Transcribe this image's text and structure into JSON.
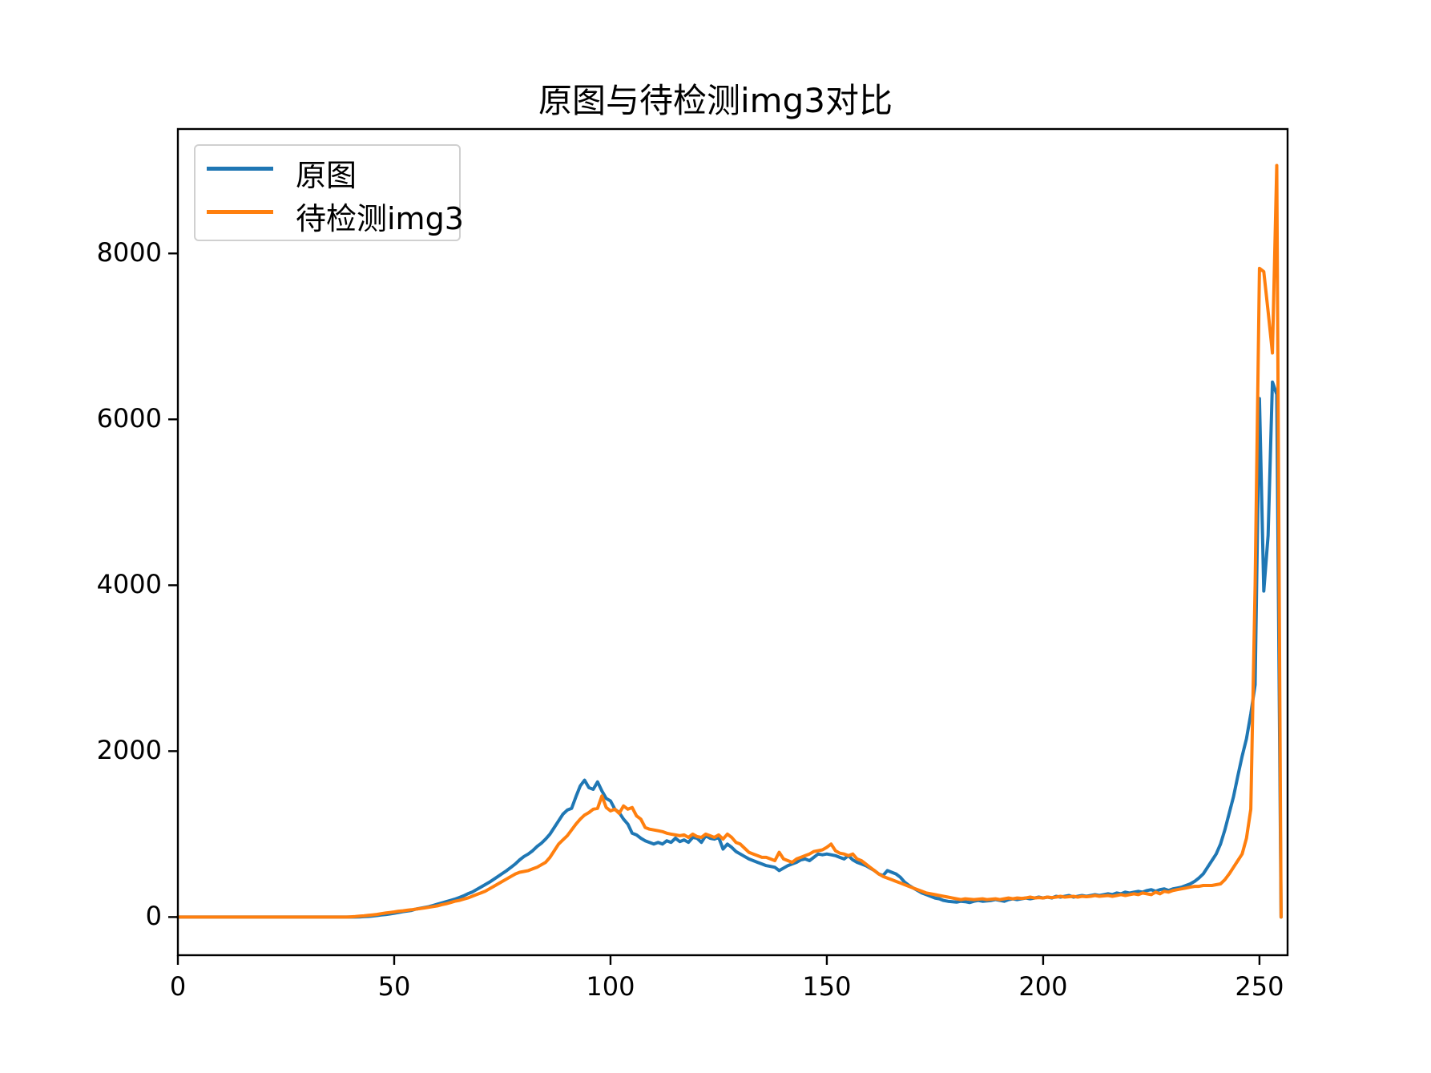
{
  "chart_data": {
    "type": "line",
    "title": "原图与待检测img3对比",
    "xlabel": "",
    "ylabel": "",
    "xlim": [
      0,
      256.5
    ],
    "ylim": [
      -460,
      9500
    ],
    "grid": false,
    "legend_position": "upper left",
    "x_ticks": [
      0,
      50,
      100,
      150,
      200,
      250
    ],
    "x_tick_labels": [
      "0",
      "50",
      "100",
      "150",
      "200",
      "250"
    ],
    "y_ticks": [
      0,
      2000,
      4000,
      6000,
      8000
    ],
    "y_tick_labels": [
      "0",
      "2000",
      "4000",
      "6000",
      "8000"
    ],
    "x": "0..255 (pixel intensity bins, step 1)",
    "series": [
      {
        "name": "原图",
        "color": "#1f77b4",
        "values": [
          0,
          0,
          0,
          0,
          0,
          0,
          0,
          0,
          0,
          0,
          0,
          0,
          0,
          0,
          0,
          0,
          0,
          0,
          0,
          0,
          0,
          0,
          0,
          0,
          0,
          0,
          0,
          0,
          0,
          0,
          0,
          0,
          0,
          0,
          0,
          0,
          0,
          0,
          0,
          0,
          0,
          0,
          2,
          5,
          8,
          12,
          18,
          25,
          30,
          38,
          45,
          55,
          65,
          72,
          80,
          95,
          105,
          115,
          125,
          140,
          155,
          170,
          185,
          200,
          215,
          235,
          255,
          280,
          300,
          330,
          360,
          390,
          420,
          455,
          490,
          525,
          560,
          600,
          640,
          690,
          730,
          760,
          800,
          850,
          890,
          940,
          1000,
          1080,
          1160,
          1240,
          1290,
          1310,
          1450,
          1580,
          1650,
          1560,
          1540,
          1630,
          1520,
          1430,
          1400,
          1300,
          1260,
          1180,
          1120,
          1010,
          990,
          950,
          920,
          900,
          880,
          900,
          880,
          920,
          900,
          950,
          910,
          930,
          900,
          960,
          950,
          900,
          980,
          950,
          940,
          960,
          820,
          880,
          840,
          790,
          760,
          730,
          700,
          680,
          660,
          640,
          620,
          610,
          600,
          560,
          590,
          620,
          640,
          660,
          690,
          700,
          680,
          720,
          760,
          750,
          760,
          750,
          740,
          720,
          700,
          740,
          690,
          660,
          640,
          620,
          590,
          560,
          520,
          500,
          560,
          540,
          520,
          480,
          420,
          380,
          350,
          320,
          290,
          270,
          250,
          230,
          220,
          200,
          190,
          185,
          180,
          190,
          185,
          175,
          190,
          200,
          190,
          195,
          200,
          210,
          200,
          190,
          210,
          220,
          210,
          220,
          230,
          220,
          230,
          240,
          230,
          240,
          230,
          250,
          240,
          250,
          260,
          240,
          250,
          260,
          250,
          260,
          270,
          260,
          270,
          280,
          270,
          290,
          280,
          300,
          290,
          300,
          310,
          300,
          320,
          330,
          310,
          330,
          340,
          320,
          340,
          350,
          360,
          380,
          400,
          430,
          470,
          520,
          600,
          680,
          760,
          880,
          1050,
          1250,
          1450,
          1700,
          1940,
          2150,
          2450,
          2800,
          6250,
          3930,
          4600,
          6450,
          6300,
          0
        ]
      },
      {
        "name": "待检测img3",
        "color": "#ff7f0e",
        "values": [
          0,
          0,
          0,
          0,
          0,
          0,
          0,
          0,
          0,
          0,
          0,
          0,
          0,
          0,
          0,
          0,
          0,
          0,
          0,
          0,
          0,
          0,
          0,
          0,
          0,
          0,
          0,
          0,
          0,
          0,
          0,
          0,
          0,
          0,
          0,
          0,
          0,
          0,
          0,
          0,
          3,
          6,
          10,
          14,
          20,
          26,
          32,
          40,
          48,
          55,
          62,
          70,
          75,
          82,
          88,
          95,
          102,
          110,
          118,
          126,
          135,
          150,
          160,
          175,
          190,
          200,
          215,
          230,
          250,
          270,
          290,
          310,
          340,
          370,
          400,
          430,
          460,
          490,
          520,
          540,
          550,
          560,
          580,
          600,
          630,
          660,
          720,
          800,
          880,
          930,
          980,
          1050,
          1120,
          1180,
          1230,
          1260,
          1300,
          1310,
          1460,
          1320,
          1280,
          1300,
          1250,
          1340,
          1300,
          1320,
          1220,
          1180,
          1080,
          1060,
          1050,
          1040,
          1030,
          1010,
          1000,
          990,
          980,
          990,
          960,
          1000,
          970,
          960,
          1000,
          980,
          960,
          990,
          940,
          1000,
          960,
          900,
          880,
          830,
          780,
          760,
          740,
          720,
          720,
          700,
          680,
          780,
          700,
          680,
          660,
          700,
          720,
          740,
          760,
          790,
          800,
          810,
          840,
          880,
          800,
          770,
          760,
          740,
          760,
          700,
          680,
          640,
          600,
          560,
          520,
          490,
          470,
          450,
          430,
          410,
          390,
          370,
          350,
          330,
          310,
          290,
          280,
          270,
          260,
          250,
          240,
          230,
          220,
          210,
          220,
          215,
          210,
          215,
          220,
          210,
          215,
          220,
          210,
          220,
          230,
          220,
          230,
          225,
          230,
          240,
          230,
          235,
          230,
          240,
          235,
          240,
          250,
          240,
          245,
          250,
          240,
          250,
          245,
          250,
          260,
          250,
          255,
          260,
          250,
          260,
          270,
          260,
          270,
          280,
          270,
          290,
          280,
          270,
          300,
          280,
          310,
          300,
          320,
          330,
          340,
          350,
          360,
          370,
          370,
          380,
          380,
          380,
          390,
          400,
          450,
          520,
          600,
          680,
          760,
          950,
          1300,
          4000,
          7820,
          7780,
          7300,
          6800,
          9060,
          0
        ]
      }
    ]
  },
  "figure": {
    "title": "原图与待检测img3对比",
    "legend": [
      {
        "label": "原图",
        "color": "#1f77b4"
      },
      {
        "label": "待检测img3",
        "color": "#ff7f0e"
      }
    ],
    "axis_color": "#000000",
    "background": "#ffffff"
  }
}
